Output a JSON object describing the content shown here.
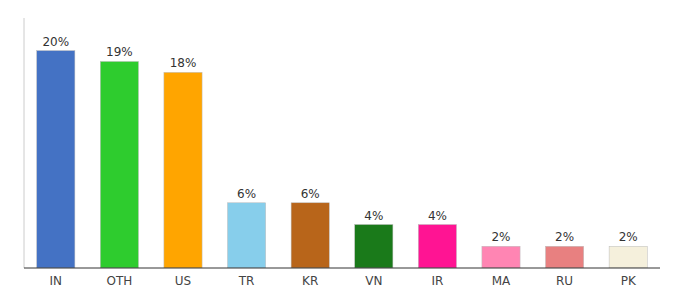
{
  "chart_data": {
    "type": "bar",
    "categories": [
      "IN",
      "OTH",
      "US",
      "TR",
      "KR",
      "VN",
      "IR",
      "MA",
      "RU",
      "PK"
    ],
    "values": [
      20,
      19,
      18,
      6,
      6,
      4,
      4,
      2,
      2,
      2
    ],
    "value_labels": [
      "20%",
      "19%",
      "18%",
      "6%",
      "6%",
      "4%",
      "4%",
      "2%",
      "2%",
      "2%"
    ],
    "colors": [
      "#4472c4",
      "#2ecc2e",
      "#ffa500",
      "#87ceeb",
      "#b8651a",
      "#1a7a1a",
      "#ff1493",
      "#ff85b3",
      "#e88080",
      "#f5f0dc"
    ],
    "ylim": [
      0,
      23
    ],
    "grid": false,
    "data_labels": true,
    "tick_labels": "x"
  }
}
